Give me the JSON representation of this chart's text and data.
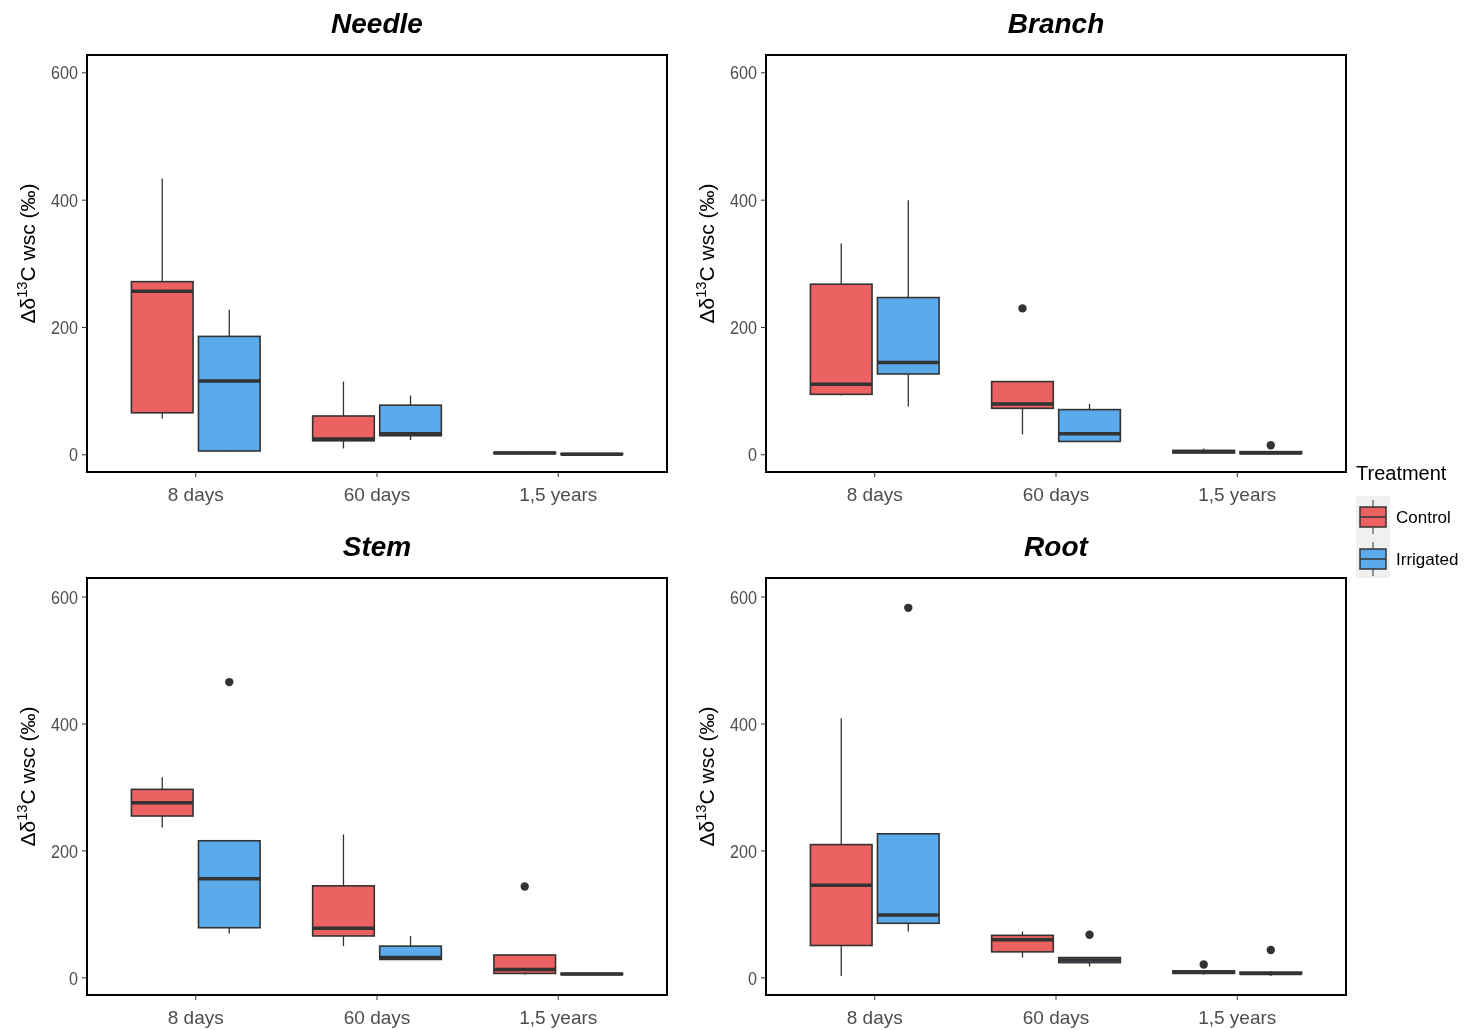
{
  "chart_data": [
    {
      "type": "box",
      "title": "Needle",
      "ylabel": "Δδ$^{13}$C wsc (‰)",
      "categories": [
        "8 days",
        "60 days",
        "1,5 years"
      ],
      "ylim": [
        -27,
        628
      ],
      "yticks": [
        0,
        200,
        400,
        600
      ],
      "grid": false,
      "legend": false,
      "series": [
        {
          "color": "#ec6162",
          "boxes": [
            {
              "low": 57,
              "q1": 66,
              "median": 257,
              "q3": 272,
              "high": 434
            },
            {
              "low": 10,
              "q1": 22,
              "median": 25,
              "q3": 61,
              "high": 115
            },
            {
              "low": 1,
              "q1": 2,
              "median": 3,
              "q3": 4,
              "high": 5
            }
          ]
        },
        {
          "color": "#5baaec",
          "boxes": [
            {
              "low": 5,
              "q1": 6,
              "median": 116,
              "q3": 186,
              "high": 228
            },
            {
              "low": 23,
              "q1": 30,
              "median": 33,
              "q3": 78,
              "high": 93
            },
            {
              "low": 0,
              "q1": 0.5,
              "median": 1,
              "q3": 2,
              "high": 2
            }
          ]
        }
      ]
    },
    {
      "type": "box",
      "title": "Branch",
      "ylabel": "Δδ$^{13}$C wsc (‰)",
      "categories": [
        "8 days",
        "60 days",
        "1,5 years"
      ],
      "ylim": [
        -27,
        628
      ],
      "yticks": [
        0,
        200,
        400,
        600
      ],
      "grid": false,
      "legend": "right",
      "legend_title": "Treatment",
      "series": [
        {
          "name": "Control",
          "color": "#ec6162",
          "boxes": [
            {
              "low": 93,
              "q1": 95,
              "median": 111,
              "q3": 268,
              "high": 332
            },
            {
              "low": 32,
              "q1": 73,
              "median": 80,
              "q3": 115,
              "high": 115,
              "outliers": [
                230
              ]
            },
            {
              "low": 2,
              "q1": 3,
              "median": 5,
              "q3": 7,
              "high": 10
            }
          ]
        },
        {
          "name": "Irrigated",
          "color": "#5baaec",
          "boxes": [
            {
              "low": 76,
              "q1": 127,
              "median": 145,
              "q3": 247,
              "high": 400
            },
            {
              "low": 20,
              "q1": 21,
              "median": 33,
              "q3": 71,
              "high": 80
            },
            {
              "low": 1,
              "q1": 2,
              "median": 3,
              "q3": 5,
              "high": 6,
              "outliers": [
                15
              ]
            }
          ]
        }
      ]
    },
    {
      "type": "box",
      "title": "Stem",
      "ylabel": "Δδ$^{13}$C wsc (‰)",
      "categories": [
        "8 days",
        "60 days",
        "1,5 years"
      ],
      "ylim": [
        -27,
        630
      ],
      "yticks": [
        0,
        200,
        400,
        600
      ],
      "grid": false,
      "legend": false,
      "series": [
        {
          "color": "#ec6162",
          "boxes": [
            {
              "low": 237,
              "q1": 255,
              "median": 276,
              "q3": 297,
              "high": 316
            },
            {
              "low": 50,
              "q1": 66,
              "median": 78,
              "q3": 145,
              "high": 226
            },
            {
              "low": 5,
              "q1": 7,
              "median": 13,
              "q3": 36,
              "high": 36,
              "outliers": [
                144
              ]
            }
          ]
        },
        {
          "color": "#5baaec",
          "boxes": [
            {
              "low": 70,
              "q1": 79,
              "median": 156,
              "q3": 216,
              "high": 216,
              "outliers": [
                466
              ]
            },
            {
              "low": 29,
              "q1": 29,
              "median": 32,
              "q3": 50,
              "high": 66
            },
            {
              "low": 4,
              "q1": 5,
              "median": 6,
              "q3": 7,
              "high": 8
            }
          ]
        }
      ]
    },
    {
      "type": "box",
      "title": "Root",
      "ylabel": "Δδ$^{13}$C wsc (‰)",
      "categories": [
        "8 days",
        "60 days",
        "1,5 years"
      ],
      "ylim": [
        -27,
        630
      ],
      "yticks": [
        0,
        200,
        400,
        600
      ],
      "grid": false,
      "legend": false,
      "series": [
        {
          "color": "#ec6162",
          "boxes": [
            {
              "low": 3,
              "q1": 51,
              "median": 146,
              "q3": 210,
              "high": 409
            },
            {
              "low": 32,
              "q1": 41,
              "median": 60,
              "q3": 67,
              "high": 73
            },
            {
              "low": 5,
              "q1": 7,
              "median": 9,
              "q3": 11,
              "high": 12,
              "outliers": [
                21
              ]
            }
          ]
        },
        {
          "color": "#5baaec",
          "boxes": [
            {
              "low": 73,
              "q1": 86,
              "median": 99,
              "q3": 227,
              "high": 227,
              "outliers": [
                583
              ]
            },
            {
              "low": 18,
              "q1": 24,
              "median": 28,
              "q3": 32,
              "high": 32,
              "outliers": [
                68
              ]
            },
            {
              "low": 3,
              "q1": 6,
              "median": 7,
              "q3": 9,
              "high": 10,
              "outliers": [
                44
              ]
            }
          ]
        }
      ]
    }
  ]
}
